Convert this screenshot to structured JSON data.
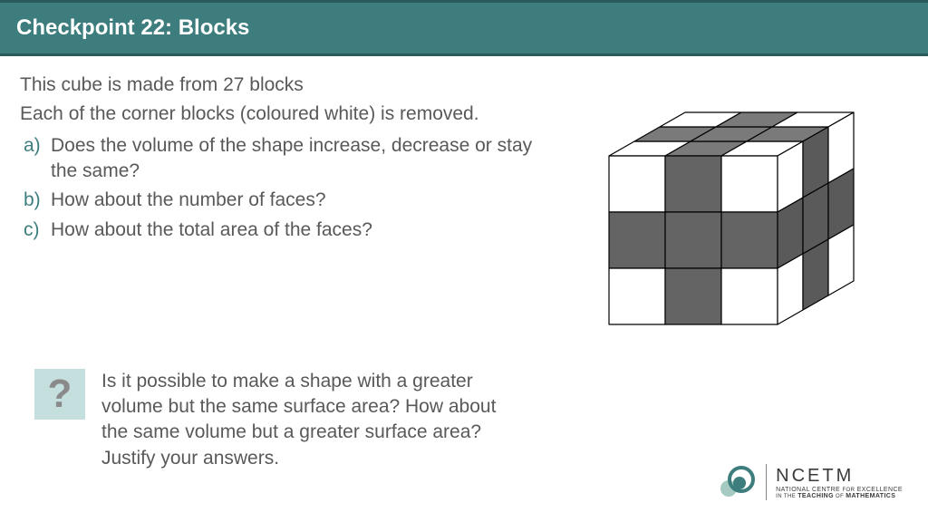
{
  "header": {
    "title": "Checkpoint 22: Blocks"
  },
  "intro": {
    "line1": "This cube is made from 27 blocks",
    "line2": "Each of the corner blocks (coloured white) is removed."
  },
  "questions": [
    {
      "marker": "a)",
      "text": "Does the volume of the shape increase, decrease or stay the same?"
    },
    {
      "marker": "b)",
      "text": "How about the number of faces?"
    },
    {
      "marker": "c)",
      "text": "How about the total area of the faces?"
    }
  ],
  "extension": {
    "icon_glyph": "?",
    "text": "Is it possible to make a shape with a greater volume but the same surface area? How about the same volume but a greater surface area? Justify your answers."
  },
  "logo": {
    "name": "NCETM",
    "tagline_prefix": "NATIONAL CENTRE ",
    "tagline_for": "FOR",
    "tagline_mid": " EXCELLENCE",
    "tagline2_prefix": "IN THE ",
    "tagline2_teaching": "TEACHING",
    "tagline2_of": " OF ",
    "tagline2_math": "MATHEMATICS"
  },
  "cube": {
    "type": "isometric-diagram",
    "grid": "3x3x3",
    "colors": {
      "white_block": "#ffffff",
      "grey_block": "#646464",
      "top_grey": "#7a7a7a",
      "side_grey": "#5a5a5a",
      "stroke": "#000000",
      "background": "#ffffff"
    },
    "stroke_width": 1.2,
    "top_pattern": [
      [
        "white",
        "grey",
        "white"
      ],
      [
        "grey",
        "grey",
        "grey"
      ],
      [
        "white",
        "grey",
        "white"
      ]
    ],
    "front_pattern": [
      [
        "white",
        "grey",
        "white"
      ],
      [
        "grey",
        "grey",
        "grey"
      ],
      [
        "white",
        "grey",
        "white"
      ]
    ],
    "side_pattern": [
      [
        "white",
        "grey",
        "white"
      ],
      [
        "grey",
        "grey",
        "grey"
      ],
      [
        "white",
        "grey",
        "white"
      ]
    ]
  },
  "colors": {
    "accent": "#3d7d7d",
    "body_text": "#595959",
    "ext_icon_bg": "#c5dede"
  }
}
